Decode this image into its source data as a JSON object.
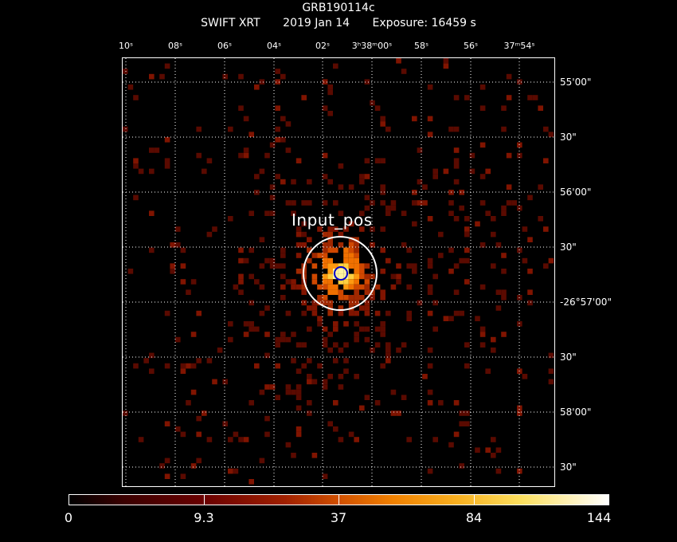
{
  "header": {
    "object": "GRB190114c",
    "instrument": "SWIFT XRT",
    "date": "2019 Jan 14",
    "exposure": "Exposure: 16459 s"
  },
  "ra_ticks": [
    "10s",
    "08s",
    "06s",
    "04s",
    "02s",
    "3h38m00s",
    "58s",
    "56s",
    "37m54s"
  ],
  "ra_tick_labels": [
    "10ˢ",
    "08ˢ",
    "06ˢ",
    "04ˢ",
    "02ˢ",
    "3ʰ38ᵐ00ˢ",
    "58ˢ",
    "56ˢ",
    "37ᵐ54ˢ"
  ],
  "dec_ticks": [
    "55'00\"",
    "30\"",
    "56'00\"",
    "30\"",
    "-26°57'00\"",
    "30\"",
    "58'00\"",
    "30\""
  ],
  "source": {
    "label": "Input_pos",
    "circle_color": "#ffffff",
    "marker_color": "#0000cc"
  },
  "colorbar": {
    "labels": [
      "0",
      "9.3",
      "37",
      "84",
      "144"
    ]
  }
}
